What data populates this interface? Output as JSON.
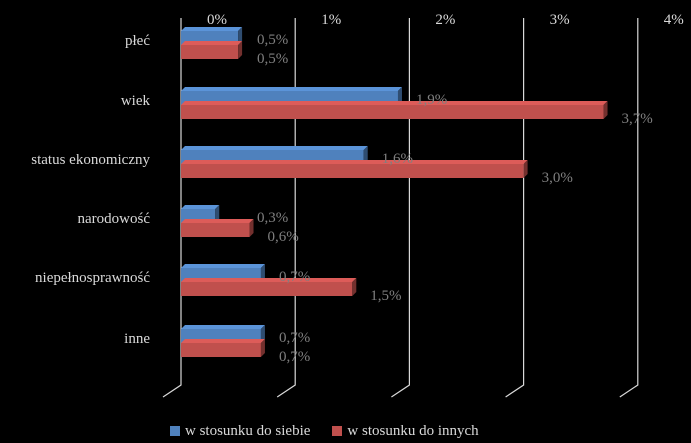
{
  "chart_data": {
    "type": "bar",
    "orientation": "horizontal",
    "style": "3d",
    "categories": [
      "płeć",
      "wiek",
      "status ekonomiczny",
      "narodowość",
      "niepełnosprawność",
      "inne"
    ],
    "series": [
      {
        "name": "w stosunku do siebie",
        "color": "#4f81bd",
        "values": [
          0.5,
          1.9,
          1.6,
          0.3,
          0.7,
          0.7
        ],
        "labels": [
          "0,5%",
          "1,9%",
          "1,6%",
          "0,3%",
          "0,7%",
          "0,7%"
        ]
      },
      {
        "name": "w stosunku do innych",
        "color": "#c0504d",
        "values": [
          0.5,
          3.7,
          3.0,
          0.6,
          1.5,
          0.7
        ],
        "labels": [
          "0,5%",
          "3,7%",
          "3,0%",
          "0,6%",
          "1,5%",
          "0,7%"
        ]
      }
    ],
    "ticks": [
      0,
      1,
      2,
      3,
      4
    ],
    "tick_labels": [
      "0%",
      "1%",
      "2%",
      "3%",
      "4%"
    ],
    "xlim": [
      0,
      4
    ],
    "unit": "%",
    "grid": true,
    "legend_position": "bottom",
    "background": "#000000"
  }
}
